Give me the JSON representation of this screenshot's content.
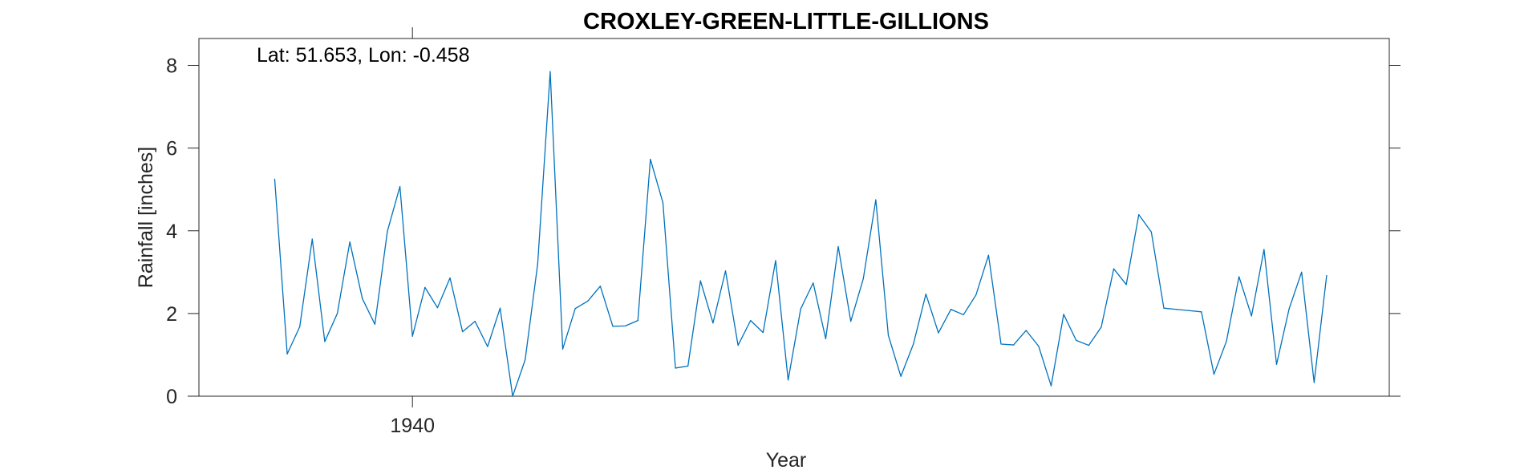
{
  "chart_data": {
    "type": "line",
    "title": "CROXLEY-GREEN-LITTLE-GILLIONS",
    "xlabel": "Year",
    "ylabel": "Rainfall [inches]",
    "annotation": "Lat: 51.653, Lon: -0.458",
    "xlim": [
      1922.95,
      2018.0
    ],
    "ylim": [
      0,
      8.65
    ],
    "xticks": [
      1940
    ],
    "xtick_labels": [
      "1940"
    ],
    "yticks": [
      0,
      2,
      4,
      6,
      8
    ],
    "ytick_labels": [
      "0",
      "2",
      "4",
      "6",
      "8"
    ],
    "grid": false,
    "legend": "none",
    "line_color": "#0072BD",
    "series": [
      {
        "x": [
          1929,
          1930,
          1931,
          1932,
          1933,
          1934,
          1935,
          1936,
          1937,
          1938,
          1939,
          1940,
          1941,
          1942,
          1943,
          1944,
          1945,
          1946,
          1947,
          1948,
          1949,
          1950,
          1951,
          1952,
          1953,
          1954,
          1955,
          1956,
          1957,
          1958,
          1959,
          1960,
          1961,
          1962,
          1963,
          1964,
          1965,
          1966,
          1967,
          1968,
          1969,
          1970,
          1971,
          1972,
          1973,
          1974,
          1975,
          1976,
          1977,
          1978,
          1979,
          1980,
          1981,
          1982,
          1983,
          1984,
          1985,
          1986,
          1987,
          1988,
          1989,
          1990,
          1991,
          1992,
          1993,
          1994,
          1995,
          1996,
          1997,
          1998,
          1999,
          2000,
          2001,
          2002,
          2003,
          2004,
          2005,
          2006,
          2007,
          2008,
          2009,
          2010,
          2011,
          2012,
          2013
        ],
        "values": [
          5.25,
          1.02,
          1.68,
          3.8,
          1.32,
          2.0,
          3.73,
          2.36,
          1.74,
          3.99,
          5.07,
          1.45,
          2.63,
          2.14,
          2.86,
          1.56,
          1.81,
          1.2,
          2.13,
          0.0,
          0.88,
          3.2,
          7.85,
          1.14,
          2.12,
          2.3,
          2.66,
          1.69,
          1.7,
          1.83,
          5.73,
          4.68,
          0.68,
          0.73,
          2.79,
          1.77,
          3.03,
          1.23,
          1.83,
          1.54,
          3.28,
          0.39,
          2.11,
          2.74,
          1.39,
          3.62,
          1.81,
          2.84,
          4.75,
          1.47,
          0.48,
          1.26,
          2.47,
          1.53,
          2.1,
          1.97,
          2.45,
          3.41,
          1.26,
          1.24,
          1.59,
          1.21,
          0.25,
          1.98,
          1.35,
          1.23,
          1.67,
          3.08,
          2.7,
          4.39,
          3.97,
          2.13,
          2.1,
          2.07,
          2.04,
          0.53,
          1.33,
          2.89,
          1.94,
          3.55,
          0.77,
          2.11,
          3.0,
          0.33,
          2.92
        ]
      }
    ]
  }
}
